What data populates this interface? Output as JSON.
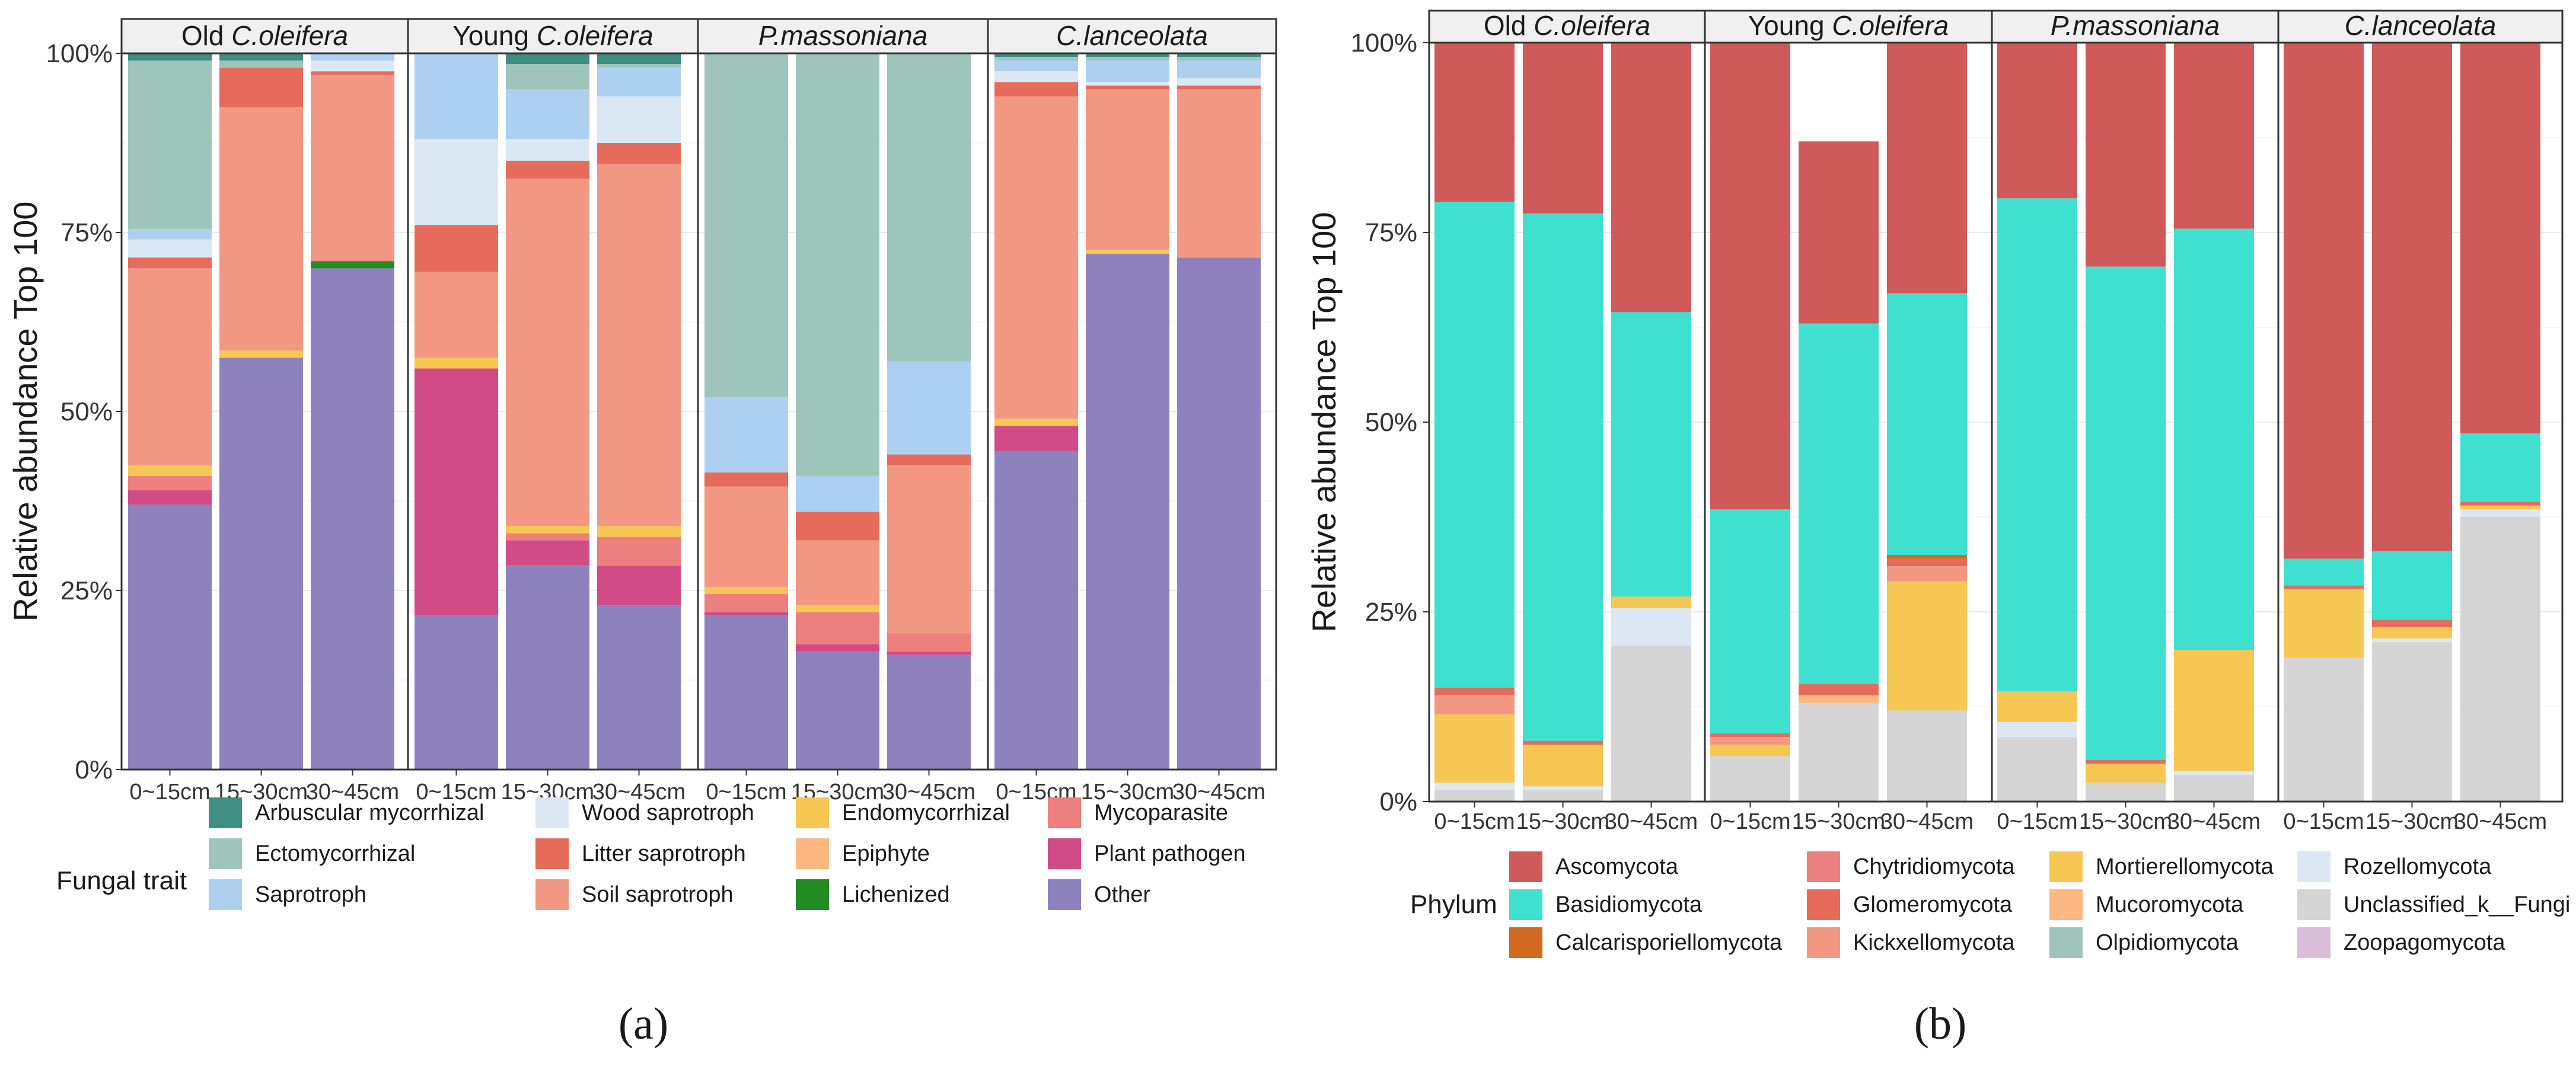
{
  "chart_data": [
    {
      "type": "stacked-bar",
      "panel_label": "(a)",
      "ylabel": "Relative abundance Top 100",
      "ylim": [
        0,
        100
      ],
      "yticks": [
        0,
        25,
        50,
        75,
        100
      ],
      "ytick_labels": [
        "0%",
        "25%",
        "50%",
        "75%",
        "100%"
      ],
      "facet_labels": [
        {
          "pre": "Old ",
          "italic": "C.oleifera"
        },
        {
          "pre": "Young ",
          "italic": "C.oleifera"
        },
        {
          "pre": "",
          "italic": "P.massoniana"
        },
        {
          "pre": "",
          "italic": "C.lanceolata"
        }
      ],
      "categories": [
        "0~15cm",
        "15~30cm",
        "30~45cm"
      ],
      "legend_title": "Fungal trait",
      "legend_layout": [
        "col",
        "col",
        "col",
        "col"
      ],
      "series": [
        {
          "name": "Other",
          "color": "#8E82BE"
        },
        {
          "name": "Plant pathogen",
          "color": "#D14B86"
        },
        {
          "name": "Mycoparasite",
          "color": "#EE7F7F"
        },
        {
          "name": "Lichenized",
          "color": "#238B23"
        },
        {
          "name": "Epiphyte",
          "color": "#FDB780"
        },
        {
          "name": "Endomycorrhizal",
          "color": "#F6C752"
        },
        {
          "name": "Soil saprotroph",
          "color": "#F29882"
        },
        {
          "name": "Litter saprotroph",
          "color": "#E66B5B"
        },
        {
          "name": "Wood saprotroph",
          "color": "#DCE7F4"
        },
        {
          "name": "Saprotroph",
          "color": "#AED0F0"
        },
        {
          "name": "Ectomycorrhizal",
          "color": "#9FC4BB"
        },
        {
          "name": "Arbuscular mycorrhizal",
          "color": "#3E8F82"
        }
      ],
      "legend_order": [
        "Arbuscular mycorrhizal",
        "Ectomycorrhizal",
        "Saprotroph",
        "Wood saprotroph",
        "Litter saprotroph",
        "Soil saprotroph",
        "Endomycorrhizal",
        "Epiphyte",
        "Lichenized",
        "Mycoparasite",
        "Plant pathogen",
        "Other"
      ],
      "values": [
        [
          [
            37,
            2,
            2,
            0,
            0,
            1.5,
            27.5,
            1.5,
            2.5,
            1.5,
            23.5,
            1
          ],
          [
            57.5,
            0,
            0,
            0,
            0,
            1,
            34,
            5.5,
            0,
            0,
            1,
            1
          ],
          [
            70,
            0,
            0,
            1,
            0,
            0,
            26,
            0.5,
            1.5,
            1,
            0,
            0
          ]
        ],
        [
          [
            21.5,
            34.5,
            0,
            0,
            0,
            1.5,
            12,
            6.5,
            12,
            12,
            0,
            0
          ],
          [
            28.5,
            3.5,
            1,
            0,
            0,
            1,
            48.5,
            2.5,
            3,
            7,
            3.5,
            1.5
          ],
          [
            23,
            5.5,
            4,
            0,
            0,
            1.5,
            50.5,
            3,
            6.5,
            4,
            0.5,
            1.5
          ]
        ],
        [
          [
            21.5,
            0.5,
            2.5,
            0,
            0,
            1,
            14,
            2,
            0,
            10.5,
            48,
            0
          ],
          [
            16.5,
            1,
            4.5,
            0,
            0,
            1,
            9,
            4,
            0,
            5,
            59,
            0
          ],
          [
            16,
            0.5,
            2.5,
            0,
            0,
            0,
            23.5,
            1.5,
            0,
            13,
            43,
            0
          ]
        ],
        [
          [
            44.5,
            3.5,
            0,
            0,
            0,
            1,
            45,
            2,
            1.5,
            1.5,
            0.5,
            0.5
          ],
          [
            72,
            0,
            0,
            0,
            0,
            0.5,
            22.5,
            0.5,
            0.5,
            3,
            0.5,
            0.5
          ],
          [
            71.5,
            0,
            0,
            0,
            0,
            0,
            23.5,
            0.5,
            1,
            2.5,
            0.5,
            0.5
          ]
        ]
      ]
    },
    {
      "type": "stacked-bar",
      "panel_label": "(b)",
      "ylabel": "Relative abundance Top 100",
      "ylim": [
        0,
        100
      ],
      "yticks": [
        0,
        25,
        50,
        75,
        100
      ],
      "ytick_labels": [
        "0%",
        "25%",
        "50%",
        "75%",
        "100%"
      ],
      "facet_labels": [
        {
          "pre": "Old ",
          "italic": "C.oleifera"
        },
        {
          "pre": "Young ",
          "italic": "C.oleifera"
        },
        {
          "pre": "",
          "italic": "P.massoniana"
        },
        {
          "pre": "",
          "italic": "C.lanceolata"
        }
      ],
      "categories": [
        "0~15cm",
        "15~30cm",
        "30~45cm"
      ],
      "legend_title": "Phylum",
      "series": [
        {
          "name": "Unclassified_k__Fungi",
          "color": "#D4D4D4"
        },
        {
          "name": "Rozellomycota",
          "color": "#DCE7F4"
        },
        {
          "name": "Zoopagomycota",
          "color": "#D9BDD9"
        },
        {
          "name": "Mortierellomycota",
          "color": "#F6C752"
        },
        {
          "name": "Mucoromycota",
          "color": "#FDB780"
        },
        {
          "name": "Kickxellomycota",
          "color": "#F29882"
        },
        {
          "name": "Chytridiomycota",
          "color": "#EE7F7F"
        },
        {
          "name": "Glomeromycota",
          "color": "#E66B5B"
        },
        {
          "name": "Calcarisporiellomycota",
          "color": "#D2691E"
        },
        {
          "name": "Olpidiomycota",
          "color": "#9FC4BB"
        },
        {
          "name": "Basidiomycota",
          "color": "#40E0D0"
        },
        {
          "name": "Ascomycota",
          "color": "#D05A5A"
        }
      ],
      "legend_order": [
        "Ascomycota",
        "Basidiomycota",
        "Calcarisporiellomycota",
        "Chytridiomycota",
        "Glomeromycota",
        "Kickxellomycota",
        "Mortierellomycota",
        "Mucoromycota",
        "Olpidiomycota",
        "Rozellomycota",
        "Unclassified_k__Fungi",
        "Zoopagomycota"
      ],
      "values": [
        [
          [
            1.5,
            1,
            0,
            9,
            0,
            2.5,
            0,
            1,
            0,
            0,
            64,
            21
          ],
          [
            1.5,
            0.5,
            0,
            5.5,
            0,
            0,
            0,
            0.5,
            0,
            0,
            69.5,
            22.5
          ],
          [
            20.5,
            5,
            0,
            1.5,
            0,
            0,
            0,
            0,
            0,
            0,
            37.5,
            35.5
          ]
        ],
        [
          [
            6,
            0,
            0,
            1.5,
            0,
            1,
            0,
            0.5,
            0,
            0,
            29.5,
            61.5
          ],
          [
            13,
            0,
            0,
            0,
            1,
            0,
            0,
            1.5,
            0,
            0,
            47.5,
            24
          ],
          [
            12,
            0,
            0,
            17,
            0,
            2,
            0,
            1,
            0.5,
            0,
            34.5,
            33
          ]
        ],
        [
          [
            8.5,
            2,
            0,
            4,
            0,
            0,
            0,
            0,
            0,
            0,
            65,
            20.5
          ],
          [
            2.5,
            0,
            0,
            2.5,
            0,
            0,
            0,
            0.5,
            0,
            0,
            65,
            29.5
          ],
          [
            3.5,
            0.5,
            0,
            16,
            0,
            0,
            0,
            0,
            0,
            0,
            55.5,
            24.5
          ]
        ],
        [
          [
            19,
            0,
            0,
            9,
            0,
            0,
            0,
            0.5,
            0,
            0,
            3.5,
            68
          ],
          [
            21,
            0.5,
            0,
            1.5,
            0,
            0,
            0,
            1,
            0,
            0,
            9,
            67
          ],
          [
            37.5,
            1,
            0,
            0.5,
            0,
            0,
            0,
            0.5,
            0,
            0,
            9,
            51.5
          ]
        ]
      ]
    }
  ]
}
